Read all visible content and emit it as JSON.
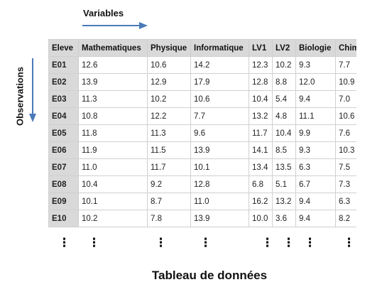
{
  "labels": {
    "variables": "Variables",
    "observations": "Observations",
    "caption": "Tableau de données",
    "ellipsis": "⋮"
  },
  "colors": {
    "arrow": "#4a7ab8",
    "header_bg": "#d9d9d9",
    "border": "#d0d0d0"
  },
  "table": {
    "headers": [
      "Eleve",
      "Mathematiques",
      "Physique",
      "Informatique",
      "LV1",
      "LV2",
      "Biologie",
      "Chimie"
    ],
    "rows": [
      [
        "E01",
        "12.6",
        "10.6",
        "14.2",
        "12.3",
        "10.2",
        "9.3",
        "7.7"
      ],
      [
        "E02",
        "13.9",
        "12.9",
        "17.9",
        "12.8",
        "8.8",
        "12.0",
        "10.9"
      ],
      [
        "E03",
        "11.3",
        "10.2",
        "10.6",
        "10.4",
        "5.4",
        "9.4",
        "7.0"
      ],
      [
        "E04",
        "10.8",
        "12.2",
        "7.7",
        "13.2",
        "4.8",
        "11.1",
        "10.6"
      ],
      [
        "E05",
        "11.8",
        "11.3",
        "9.6",
        "11.7",
        "10.4",
        "9.9",
        "7.6"
      ],
      [
        "E06",
        "11.9",
        "11.5",
        "13.9",
        "14.1",
        "8.5",
        "9.3",
        "10.3"
      ],
      [
        "E07",
        "11.0",
        "11.7",
        "10.1",
        "13.4",
        "13.5",
        "6.3",
        "7.5"
      ],
      [
        "E08",
        "10.4",
        "9.2",
        "12.8",
        "6.8",
        "5.1",
        "6.7",
        "7.3"
      ],
      [
        "E09",
        "10.1",
        "8.7",
        "11.0",
        "16.2",
        "13.2",
        "9.4",
        "6.3"
      ],
      [
        "E10",
        "10.2",
        "7.8",
        "13.9",
        "10.0",
        "3.6",
        "9.4",
        "8.2"
      ]
    ]
  }
}
